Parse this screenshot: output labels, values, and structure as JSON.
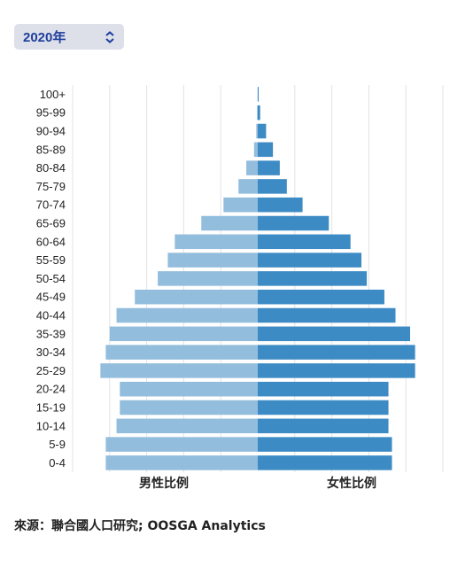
{
  "selector": {
    "value": "2020年",
    "icon": "updown-chevron-icon"
  },
  "chart_data": {
    "type": "bar",
    "orientation": "horizontal-pyramid",
    "categories": [
      "100+",
      "95-99",
      "90-94",
      "85-89",
      "80-84",
      "75-79",
      "70-74",
      "65-69",
      "60-64",
      "55-59",
      "50-54",
      "45-49",
      "40-44",
      "35-39",
      "30-34",
      "25-29",
      "20-24",
      "15-19",
      "10-14",
      "5-9",
      "0-4"
    ],
    "series": [
      {
        "name": "男性比例",
        "color": "#92bddc",
        "values": [
          0.01,
          0.04,
          0.08,
          0.2,
          0.62,
          1.04,
          1.85,
          3.05,
          4.48,
          4.86,
          5.4,
          6.64,
          7.63,
          8.0,
          8.21,
          8.5,
          7.45,
          7.45,
          7.63,
          8.21,
          8.21
        ]
      },
      {
        "name": "女性比例",
        "color": "#3d8bc4",
        "values": [
          0.05,
          0.13,
          0.45,
          0.82,
          1.19,
          1.57,
          2.42,
          3.84,
          5.01,
          5.6,
          5.89,
          6.84,
          7.44,
          8.23,
          8.5,
          8.5,
          7.06,
          7.06,
          7.06,
          7.25,
          7.25
        ]
      }
    ],
    "xlim": [
      -10,
      10
    ],
    "grid": true,
    "male_label": "男性比例",
    "female_label": "女性比例"
  },
  "source": "來源：聯合國人口研究; OOSGA Analytics"
}
